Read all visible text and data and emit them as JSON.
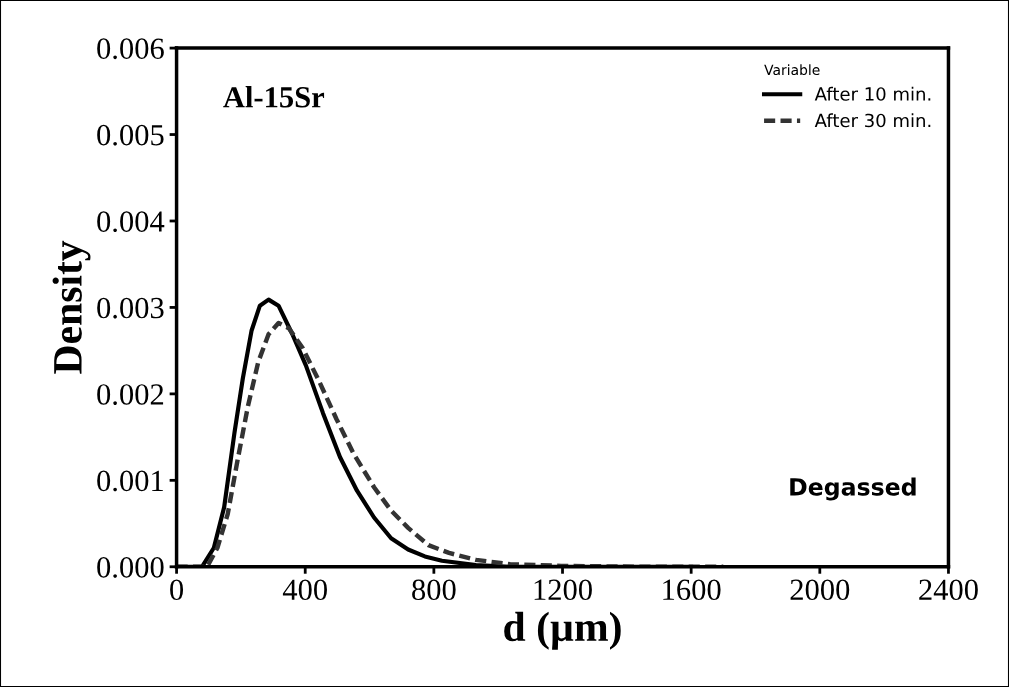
{
  "chart_data": {
    "type": "line",
    "xlabel": "d (µm)",
    "ylabel": "Density",
    "legend_title": "Variable",
    "legend": "top right",
    "annotations": [
      "Al-15Sr",
      "Degassed"
    ],
    "xlim": [
      0,
      2400
    ],
    "xticks": [
      0,
      400,
      800,
      1200,
      1600,
      2000,
      2400
    ],
    "ylim": [
      0,
      0.006
    ],
    "yticks": [
      {
        "value": 0,
        "label": "0.000"
      },
      {
        "value": 0.001,
        "label": "0.001"
      },
      {
        "value": 0.002,
        "label": "0.002"
      },
      {
        "value": 0.003,
        "label": "0.003"
      },
      {
        "value": 0.004,
        "label": "0.004"
      },
      {
        "value": 0.005,
        "label": "0.005"
      },
      {
        "value": 0.006,
        "label": "0.006"
      }
    ],
    "grid": false,
    "series": [
      {
        "name": "After 10 min.",
        "color": "#000000",
        "line_style": "solid",
        "x": [
          0,
          79,
          116,
          148,
          180,
          206,
          233,
          259,
          286,
          317,
          360,
          402,
          455,
          508,
          561,
          614,
          667,
          720,
          772,
          825,
          931,
          1037,
          1300,
          1600
        ],
        "values": [
          0,
          0,
          0.00022,
          0.00069,
          0.00155,
          0.00218,
          0.00273,
          0.00302,
          0.00309,
          0.00302,
          0.00269,
          0.00233,
          0.00178,
          0.00127,
          0.00088,
          0.00057,
          0.00033,
          0.0002,
          0.00012,
          7e-05,
          2e-05,
          0,
          0,
          0
        ]
      },
      {
        "name": "After 30 min.",
        "color": "#333333",
        "line_style": "dashed",
        "x": [
          0,
          95,
          127,
          159,
          190,
          222,
          254,
          286,
          317,
          349,
          392,
          444,
          497,
          550,
          614,
          667,
          720,
          783,
          847,
          931,
          1037,
          1196,
          1450,
          1700
        ],
        "values": [
          0,
          0,
          0.00022,
          0.00061,
          0.00124,
          0.00186,
          0.00237,
          0.00269,
          0.00282,
          0.00276,
          0.00253,
          0.00214,
          0.00171,
          0.00131,
          0.00092,
          0.00065,
          0.00045,
          0.00025,
          0.00016,
          8e-05,
          3e-05,
          1e-05,
          0,
          0
        ]
      }
    ]
  }
}
